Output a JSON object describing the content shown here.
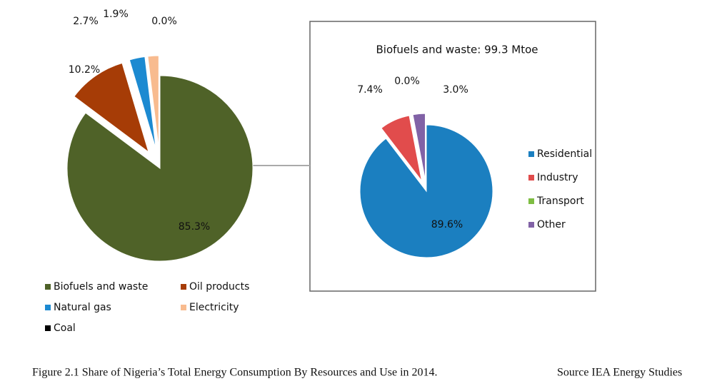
{
  "chart_data": [
    {
      "type": "pie",
      "categories": [
        "Biofuels and waste",
        "Oil products",
        "Natural gas",
        "Electricity",
        "Coal"
      ],
      "values": [
        85.3,
        10.2,
        2.7,
        1.9,
        0.0
      ],
      "value_labels": [
        "85.3%",
        "10.2%",
        "2.7%",
        "1.9%",
        "0.0%"
      ],
      "colors": [
        "#4f6228",
        "#a63c06",
        "#1c8ad1",
        "#f8bb8f",
        "#000000"
      ]
    },
    {
      "type": "pie",
      "title": "Biofuels and waste: 99.3 Mtoe",
      "categories": [
        "Residential",
        "Industry",
        "Transport",
        "Other"
      ],
      "values": [
        89.6,
        7.4,
        0.0,
        3.0
      ],
      "value_labels": [
        "89.6%",
        "7.4%",
        "0.0%",
        "3.0%"
      ],
      "colors": [
        "#1b7fc0",
        "#e14c4c",
        "#7ebd42",
        "#8162a6"
      ]
    }
  ],
  "caption": "Figure 2.1 Share of Nigeria’s Total Energy Consumption By Resources and Use in 2014.",
  "source": "Source IEA Energy Studies"
}
